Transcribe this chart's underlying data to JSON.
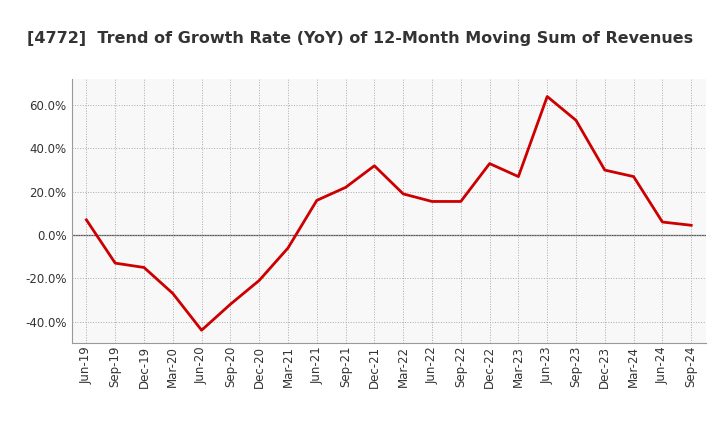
{
  "title": "[4772]  Trend of Growth Rate (YoY) of 12-Month Moving Sum of Revenues",
  "x_labels": [
    "Jun-19",
    "Sep-19",
    "Dec-19",
    "Mar-20",
    "Jun-20",
    "Sep-20",
    "Dec-20",
    "Mar-21",
    "Jun-21",
    "Sep-21",
    "Dec-21",
    "Mar-22",
    "Jun-22",
    "Sep-22",
    "Dec-22",
    "Mar-23",
    "Jun-23",
    "Sep-23",
    "Dec-23",
    "Mar-24",
    "Jun-24",
    "Sep-24"
  ],
  "y_values": [
    0.07,
    -0.13,
    -0.15,
    -0.27,
    -0.44,
    -0.32,
    -0.21,
    -0.06,
    0.16,
    0.22,
    0.32,
    0.19,
    0.155,
    0.155,
    0.33,
    0.27,
    0.64,
    0.53,
    0.3,
    0.27,
    0.06,
    0.045
  ],
  "line_color": "#cc0000",
  "line_width": 2.0,
  "ylim": [
    -0.5,
    0.72
  ],
  "yticks": [
    -0.4,
    -0.2,
    0.0,
    0.2,
    0.4,
    0.6
  ],
  "background_color": "#ffffff",
  "plot_bg_color": "#f8f8f8",
  "grid_color": "#aaaaaa",
  "zero_line_color": "#555555",
  "title_fontsize": 11.5,
  "tick_fontsize": 8.5
}
